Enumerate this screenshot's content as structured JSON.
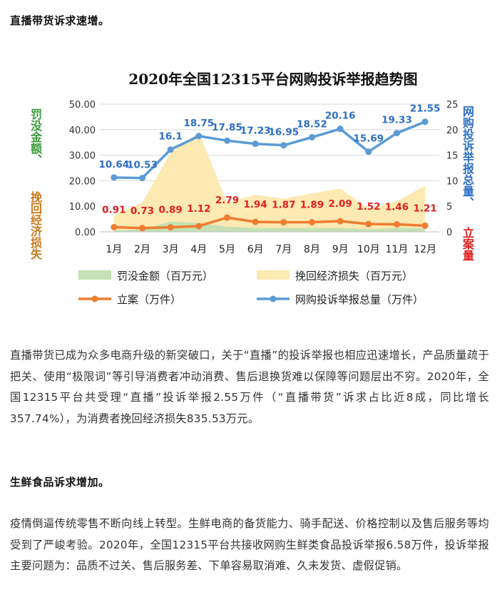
{
  "article": {
    "heading1": "直播带货诉求速增。",
    "para1": "直播带货已成为众多电商升级的新突破口，关于“直播”的投诉举报也相应迅速增长，产品质量疏于把关、使用“极限词”等引导消费者冲动消费、售后退换货难以保障等问题层出不穷。2020年，全国12315平台共受理“直播”投诉举报2.55万件（“直播带货”诉求占比近8成，同比增长357.74%），为消费者挽回经济损失835.53万元。",
    "heading2": "生鲜食品诉求增加。",
    "para2": "疫情倒逼传统零售不断向线上转型。生鲜电商的备货能力、骑手配送、价格控制以及售后服务等均受到了严峻考验。2020年，全国12315平台共接收网购生鲜类食品投诉举报6.58万件，投诉举报主要问题为：品质不过关、售后服务差、下单容易取消难、久未发货、虚假促销。"
  },
  "chart_data": {
    "type": "line",
    "title": "2020年全国12315平台网购投诉举报趋势图",
    "categories": [
      "1月",
      "2月",
      "3月",
      "4月",
      "5月",
      "6月",
      "7月",
      "8月",
      "9月",
      "10月",
      "11月",
      "12月"
    ],
    "ylabel_left_part1": "罚没金额、",
    "ylabel_left_part2": "挽回经济损失",
    "ylabel_right_part1": "网购投诉举报总量、",
    "ylabel_right_part2": "立案量",
    "y_left": {
      "min": 0,
      "max": 50,
      "ticks": [
        "0.00",
        "10.00",
        "20.00",
        "30.00",
        "40.00",
        "50.00"
      ]
    },
    "y_right": {
      "min": 0,
      "max": 25,
      "ticks": [
        "0",
        "5",
        "10",
        "15",
        "20",
        "25"
      ]
    },
    "series": [
      {
        "name": "罚没金额（百万元）",
        "type": "area",
        "axis": "left",
        "color": "#c5e0b4",
        "values": [
          0.5,
          1.0,
          4.0,
          3.5,
          2.0,
          1.5,
          1.5,
          1.5,
          1.5,
          1.0,
          1.5,
          1.5
        ]
      },
      {
        "name": "挽回经济损失（百万元）",
        "type": "area",
        "axis": "left",
        "color": "#fde9b2",
        "values": [
          6.5,
          11.5,
          31.0,
          39.0,
          11.5,
          14.5,
          13.0,
          15.0,
          17.0,
          9.0,
          12.0,
          18.0
        ]
      },
      {
        "name": "立案（万件）",
        "type": "line",
        "axis": "right",
        "color": "#ed7d31",
        "label_color": "#e02020",
        "values": [
          0.91,
          0.73,
          0.89,
          1.12,
          2.79,
          1.94,
          1.87,
          1.89,
          2.09,
          1.52,
          1.46,
          1.21
        ],
        "labels": [
          "0.91",
          "0.73",
          "0.89",
          "1.12",
          "2.79",
          "1.94",
          "1.87",
          "1.89",
          "2.09",
          "1.52",
          "1.46",
          "1.21"
        ]
      },
      {
        "name": "网购投诉举报总量（万件）",
        "type": "line",
        "axis": "right",
        "color": "#5b9bd5",
        "label_color": "#2e6fc4",
        "values": [
          10.64,
          10.53,
          16.1,
          18.75,
          17.85,
          17.23,
          16.95,
          18.52,
          20.16,
          15.69,
          19.33,
          21.55
        ],
        "labels": [
          "10.64",
          "10.53",
          "16.1",
          "18.75",
          "17.85",
          "17.23",
          "16.95",
          "18.52",
          "20.16",
          "15.69",
          "19.33",
          "21.55"
        ]
      }
    ],
    "legend_position": "bottom",
    "grid": true
  }
}
